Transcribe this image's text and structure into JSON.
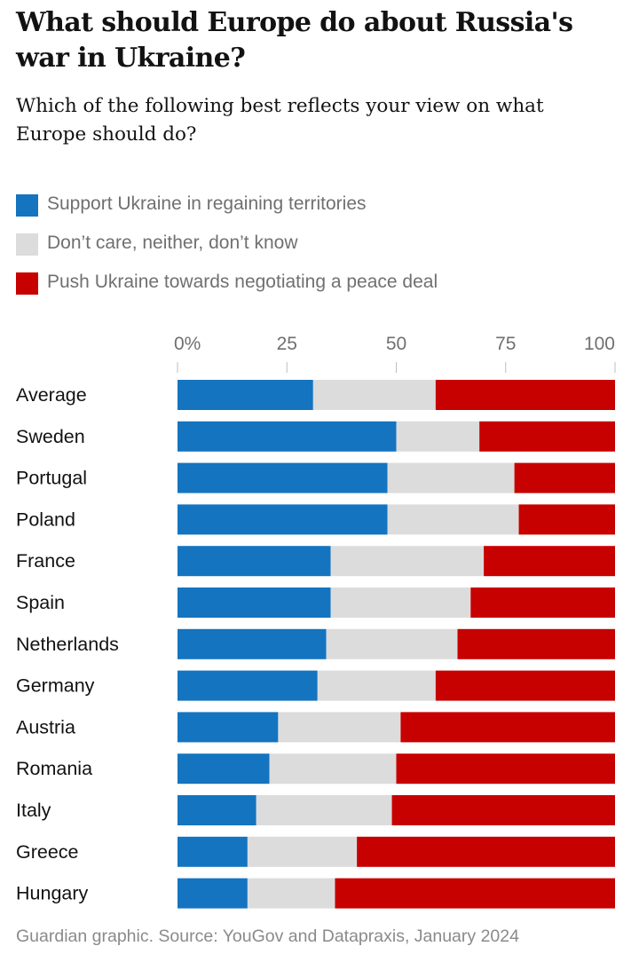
{
  "header": {
    "title": "What should Europe do about Russia's war in Ukraine?",
    "subtitle": "Which of the following best reflects your view on what Europe should do?"
  },
  "legend": [
    {
      "label": "Support Ukraine in regaining territories",
      "color": "#1474c0"
    },
    {
      "label": "Don’t care, neither, don’t know",
      "color": "#dcdcdc"
    },
    {
      "label": "Push Ukraine towards negotiating a peace deal",
      "color": "#c70000"
    }
  ],
  "chart_data": {
    "type": "bar",
    "orientation": "horizontal",
    "stacked": true,
    "title": "What should Europe do about Russia's war in Ukraine?",
    "subtitle": "Which of the following best reflects your view on what Europe should do?",
    "xlim": [
      0,
      100
    ],
    "x_ticks": [
      0,
      25,
      50,
      75,
      100
    ],
    "x_tick_labels": [
      "0%",
      "25",
      "50",
      "75",
      "100"
    ],
    "categories": [
      "Average",
      "Sweden",
      "Portugal",
      "Poland",
      "France",
      "Spain",
      "Netherlands",
      "Germany",
      "Austria",
      "Romania",
      "Italy",
      "Greece",
      "Hungary"
    ],
    "series": [
      {
        "name": "Support Ukraine in regaining territories",
        "color": "#1474c0",
        "values": [
          31,
          50,
          48,
          48,
          35,
          35,
          34,
          32,
          23,
          21,
          18,
          16,
          16
        ]
      },
      {
        "name": "Don’t care, neither, don’t know",
        "color": "#dcdcdc",
        "values": [
          28,
          19,
          29,
          30,
          35,
          32,
          30,
          27,
          28,
          29,
          31,
          25,
          20
        ]
      },
      {
        "name": "Push Ukraine towards negotiating a peace deal",
        "color": "#c70000",
        "values": [
          41,
          31,
          23,
          22,
          30,
          33,
          36,
          41,
          49,
          50,
          51,
          59,
          64
        ]
      }
    ],
    "legend_position": "top-left",
    "grid": false
  },
  "source": "Guardian graphic. Source: YouGov and Datapraxis, January 2024"
}
